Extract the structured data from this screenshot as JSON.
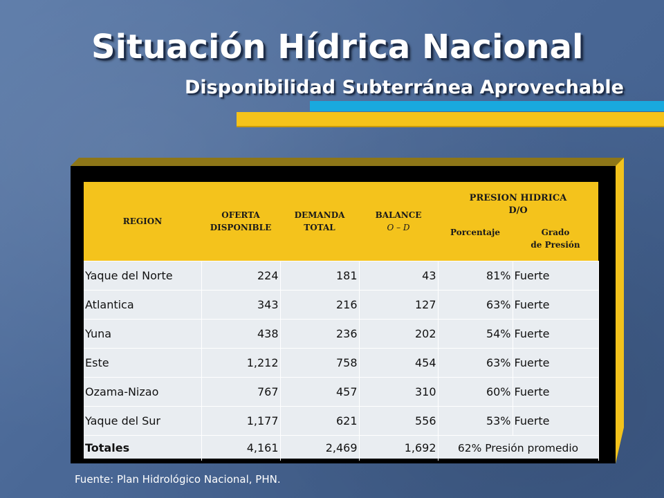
{
  "slide": {
    "title": "Situación Hídrica Nacional",
    "subtitle": "Disponibilidad Subterránea Aprovechable",
    "source": "Fuente: Plan Hidrológico Nacional, PHN.",
    "accent_blue": "#19a9de",
    "accent_yellow": "#f5c31a"
  },
  "table": {
    "headers": {
      "region": "REGION",
      "oferta_1": "OFERTA",
      "oferta_2": "DISPONIBLE",
      "demanda_1": "DEMANDA",
      "demanda_2": "TOTAL",
      "balance_1": "BALANCE",
      "balance_2": "O – D",
      "presion_1": "PRESION HIDRICA",
      "presion_2": "D/O",
      "porcentaje": "Porcentaje",
      "grado_1": "Grado",
      "grado_2": "de Presión"
    },
    "rows": [
      {
        "region": "Yaque del Norte",
        "oferta": "224",
        "demanda": "181",
        "balance": "43",
        "porcentaje": "81%",
        "grado": "Fuerte"
      },
      {
        "region": "Atlantica",
        "oferta": "343",
        "demanda": "216",
        "balance": "127",
        "porcentaje": "63%",
        "grado": "Fuerte"
      },
      {
        "region": "Yuna",
        "oferta": "438",
        "demanda": "236",
        "balance": "202",
        "porcentaje": "54%",
        "grado": "Fuerte"
      },
      {
        "region": "Este",
        "oferta": "1,212",
        "demanda": "758",
        "balance": "454",
        "porcentaje": "63%",
        "grado": "Fuerte"
      },
      {
        "region": "Ozama-Nizao",
        "oferta": "767",
        "demanda": "457",
        "balance": "310",
        "porcentaje": "60%",
        "grado": "Fuerte"
      },
      {
        "region": "Yaque del Sur",
        "oferta": "1,177",
        "demanda": "621",
        "balance": "556",
        "porcentaje": "53%",
        "grado": "Fuerte"
      }
    ],
    "totals": {
      "label": "Totales",
      "oferta": "4,161",
      "demanda": "2,469",
      "balance": "1,692",
      "presion": "62% Presión promedio"
    }
  }
}
